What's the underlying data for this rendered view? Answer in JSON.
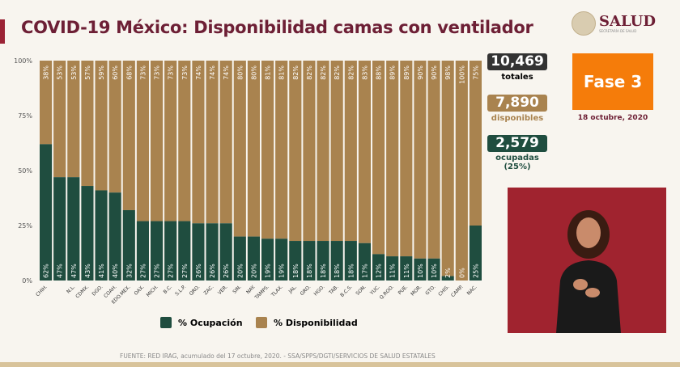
{
  "header": {
    "title": "COVID-19 México: Disponibilidad camas con ventilador",
    "logo_text": "SALUD",
    "logo_subtext": "SECRETARÍA DE SALUD"
  },
  "stats": {
    "total_value": "10,469",
    "total_label": "totales",
    "available_value": "7,890",
    "available_label": "disponibles",
    "occupied_value": "2,579",
    "occupied_label": "ocupadas",
    "occupied_pct": "(25%)"
  },
  "phase": {
    "label": "Fase 3",
    "date": "18 octubre, 2020",
    "color": "#f57c0a"
  },
  "source": "FUENTE: RED IRAG, acumulado del 17 octubre, 2020. -  SSA/SPPS/DGTI/SERVICIOS DE SALUD ESTATALES",
  "chart_data": {
    "type": "bar",
    "stacked": true,
    "yticks": [
      "0%",
      "25%",
      "50%",
      "75%",
      "100%"
    ],
    "ylim": [
      0,
      100
    ],
    "categories": [
      "CHIH.",
      "",
      "N.L.",
      "CDMX.",
      "DGO.",
      "COAH.",
      "EDO.MEX.",
      "OAX.",
      "MICH.",
      "B.C.",
      "S.L.P.",
      "QRO.",
      "ZAC.",
      "VER.",
      "SIN.",
      "NAY.",
      "TAMPS.",
      "TLAX.",
      "JAL.",
      "GRO.",
      "HGO.",
      "TAB.",
      "B.C.S.",
      "SON.",
      "YUC.",
      "Q.ROO.",
      "PUE.",
      "MOR.",
      "GTO.",
      "CHIS.",
      "CAMP.",
      "NAC."
    ],
    "series": [
      {
        "name": "% Ocupación",
        "color": "#1f4d3f",
        "values": [
          62,
          47,
          47,
          43,
          41,
          40,
          32,
          27,
          27,
          27,
          27,
          26,
          26,
          26,
          20,
          20,
          19,
          19,
          18,
          18,
          18,
          18,
          18,
          17,
          12,
          11,
          11,
          10,
          10,
          2,
          0,
          25
        ]
      },
      {
        "name": "% Disponibilidad",
        "color": "#a9834f",
        "values": [
          38,
          53,
          53,
          57,
          59,
          60,
          68,
          73,
          73,
          73,
          73,
          74,
          74,
          74,
          80,
          80,
          81,
          81,
          82,
          82,
          82,
          82,
          82,
          83,
          88,
          89,
          89,
          90,
          90,
          98,
          100,
          75
        ]
      }
    ],
    "legend": "bottom"
  }
}
